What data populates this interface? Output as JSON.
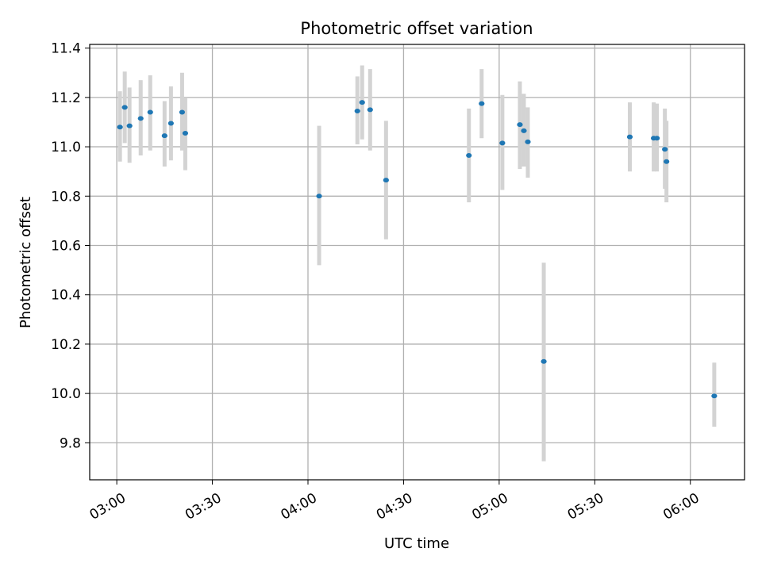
{
  "chart_data": {
    "type": "scatter",
    "title": "Photometric offset variation",
    "xlabel": "UTC time",
    "ylabel": "Photometric offset",
    "x_ticks": [
      "03:00",
      "03:30",
      "04:00",
      "04:30",
      "05:00",
      "05:30",
      "06:00"
    ],
    "y_ticks": [
      "9.8",
      "10.0",
      "10.2",
      "10.4",
      "10.6",
      "10.8",
      "11.0",
      "11.2",
      "11.4"
    ],
    "xlim": [
      "02:51:30",
      "06:17:00"
    ],
    "ylim": [
      9.65,
      11.415
    ],
    "grid": true,
    "colors": {
      "point": "#1f77b4",
      "errorbar": "#d3d3d3",
      "grid": "#b0b0b0"
    },
    "points": [
      {
        "x": "03:01:00",
        "y": 11.08,
        "lo": 10.94,
        "hi": 11.225
      },
      {
        "x": "03:02:30",
        "y": 11.16,
        "lo": 11.015,
        "hi": 11.305
      },
      {
        "x": "03:04:00",
        "y": 11.085,
        "lo": 10.935,
        "hi": 11.24
      },
      {
        "x": "03:07:30",
        "y": 11.115,
        "lo": 10.965,
        "hi": 11.27
      },
      {
        "x": "03:10:30",
        "y": 11.14,
        "lo": 10.985,
        "hi": 11.29
      },
      {
        "x": "03:15:00",
        "y": 11.045,
        "lo": 10.92,
        "hi": 11.185
      },
      {
        "x": "03:17:00",
        "y": 11.095,
        "lo": 10.945,
        "hi": 11.245
      },
      {
        "x": "03:20:30",
        "y": 11.14,
        "lo": 10.985,
        "hi": 11.3
      },
      {
        "x": "03:21:30",
        "y": 11.055,
        "lo": 10.905,
        "hi": 11.2
      },
      {
        "x": "04:03:30",
        "y": 10.8,
        "lo": 10.52,
        "hi": 11.085
      },
      {
        "x": "04:15:30",
        "y": 11.145,
        "lo": 11.01,
        "hi": 11.285
      },
      {
        "x": "04:17:00",
        "y": 11.18,
        "lo": 11.03,
        "hi": 11.33
      },
      {
        "x": "04:19:30",
        "y": 11.15,
        "lo": 10.985,
        "hi": 11.315
      },
      {
        "x": "04:24:30",
        "y": 10.865,
        "lo": 10.625,
        "hi": 11.105
      },
      {
        "x": "04:50:30",
        "y": 10.965,
        "lo": 10.775,
        "hi": 11.155
      },
      {
        "x": "04:54:30",
        "y": 11.175,
        "lo": 11.035,
        "hi": 11.315
      },
      {
        "x": "05:01:00",
        "y": 11.015,
        "lo": 10.825,
        "hi": 11.21
      },
      {
        "x": "05:06:30",
        "y": 11.09,
        "lo": 10.91,
        "hi": 11.265
      },
      {
        "x": "05:07:45",
        "y": 11.065,
        "lo": 10.92,
        "hi": 11.215
      },
      {
        "x": "05:09:00",
        "y": 11.02,
        "lo": 10.875,
        "hi": 11.16
      },
      {
        "x": "05:14:00",
        "y": 10.13,
        "lo": 9.725,
        "hi": 10.53
      },
      {
        "x": "05:41:00",
        "y": 11.04,
        "lo": 10.9,
        "hi": 11.18
      },
      {
        "x": "05:48:30",
        "y": 11.035,
        "lo": 10.9,
        "hi": 11.18
      },
      {
        "x": "05:49:30",
        "y": 11.035,
        "lo": 10.9,
        "hi": 11.175
      },
      {
        "x": "05:52:00",
        "y": 10.99,
        "lo": 10.83,
        "hi": 11.155
      },
      {
        "x": "05:52:30",
        "y": 10.94,
        "lo": 10.775,
        "hi": 11.105
      },
      {
        "x": "06:07:30",
        "y": 9.99,
        "lo": 9.865,
        "hi": 10.125
      }
    ]
  }
}
